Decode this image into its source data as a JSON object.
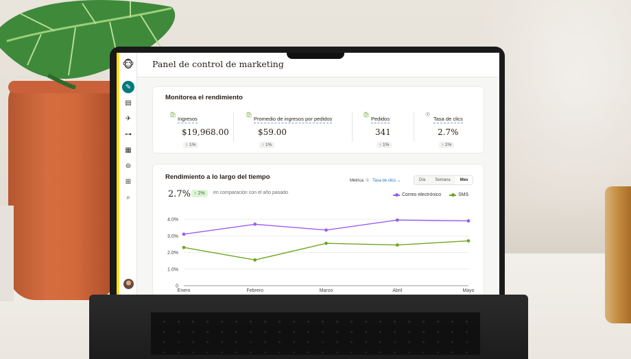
{
  "app": {
    "page_title": "Panel de control de marketing"
  },
  "sidebar": {
    "icons": [
      "mailchimp-logo-icon",
      "edit-icon",
      "audience-icon",
      "campaigns-icon",
      "automations-icon",
      "content-icon",
      "integrations-icon",
      "apps-icon",
      "search-icon"
    ]
  },
  "performance": {
    "title": "Monitorea el rendimiento",
    "metrics": [
      {
        "label": "Ingresos",
        "value": "$19,968.00",
        "change": "↑ 1%",
        "icon": "shopify-icon"
      },
      {
        "label": "Promedio de ingresos por pedidos",
        "value": "$59.00",
        "change": "↑ 1%",
        "icon": "shopify-icon"
      },
      {
        "label": "Pedidos",
        "value": "341",
        "change": "↑ 1%",
        "icon": "shopify-icon"
      },
      {
        "label": "Tasa de clics",
        "value": "2.7%",
        "change": "↑ 2%",
        "icon": "cursor-icon"
      }
    ]
  },
  "over_time": {
    "title": "Rendimiento a lo largo del tiempo",
    "rate": "2.7%",
    "rate_change": "↑ 2%",
    "compare_text": "en comparación con el año pasado",
    "metric_label": "Métrica:",
    "metric_value": "Tasa de clics",
    "periods": [
      "Día",
      "Semana",
      "Mes"
    ],
    "active_period": "Mes"
  },
  "chart_data": {
    "type": "line",
    "categories": [
      "Enero",
      "Febrero",
      "Marzo",
      "Abril",
      "Mayo"
    ],
    "series": [
      {
        "name": "Correo electrónico",
        "color": "#9b5cf2",
        "values": [
          3.1,
          3.7,
          3.35,
          3.95,
          3.9
        ]
      },
      {
        "name": "SMS",
        "color": "#6ea61e",
        "values": [
          2.3,
          1.55,
          2.55,
          2.45,
          2.7
        ]
      }
    ],
    "y_ticks": [
      "0",
      "1.0%",
      "2.0%",
      "3.0%",
      "4.0%"
    ],
    "ylim": [
      0,
      4.0
    ],
    "grid": true,
    "legend": "top-right"
  }
}
